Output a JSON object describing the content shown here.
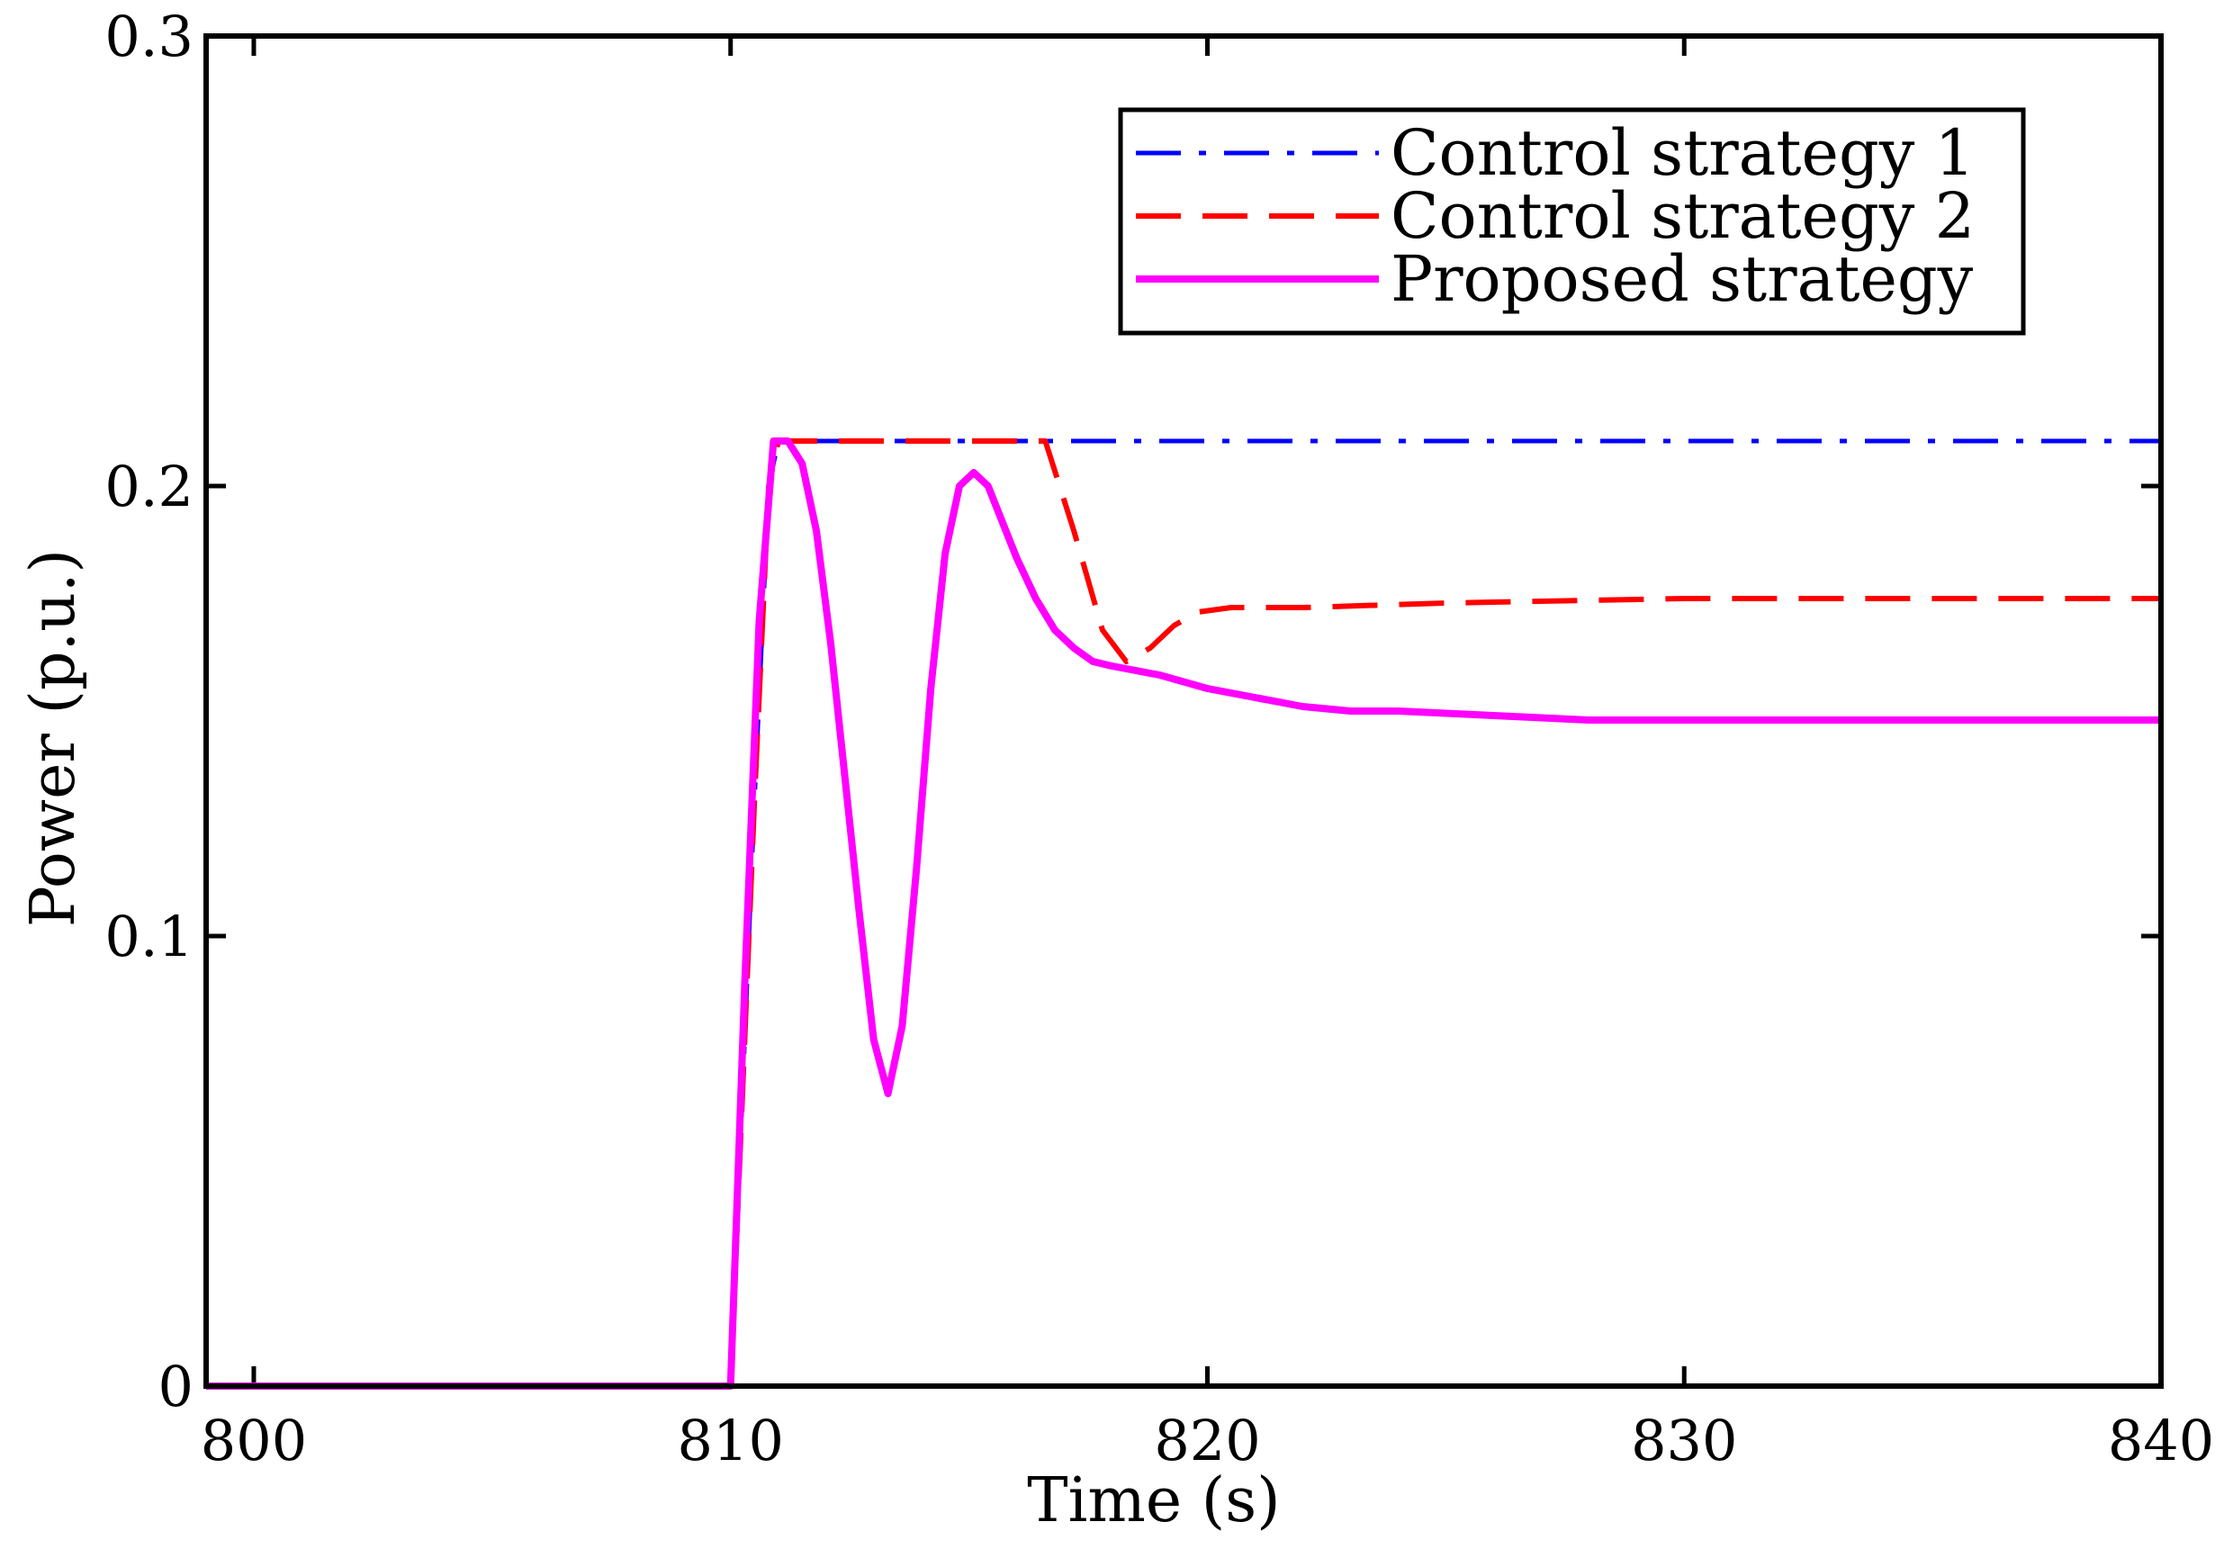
{
  "chart_data": {
    "type": "line",
    "title": "",
    "xlabel": "Time (s)",
    "ylabel": "Power (p.u.)",
    "xlim": [
      799,
      840
    ],
    "ylim": [
      0,
      0.3
    ],
    "xticks": [
      800,
      810,
      820,
      830,
      840
    ],
    "xtick_labels": [
      "800",
      "810",
      "820",
      "830",
      "840"
    ],
    "yticks": [
      0,
      0.1,
      0.2,
      0.3
    ],
    "ytick_labels": [
      "0",
      "0.1",
      "0.2",
      "0.3"
    ],
    "grid": false,
    "legend_position": "top-right",
    "series": [
      {
        "name": "Control strategy 1",
        "color": "#0000ff",
        "style": "dashdot",
        "x": [
          799,
          810,
          810.5,
          810.8,
          811,
          840
        ],
        "y": [
          0,
          0,
          0.13,
          0.2,
          0.21,
          0.21
        ]
      },
      {
        "name": "Control strategy 2",
        "color": "#ff0000",
        "style": "dashed",
        "x": [
          799,
          810,
          810.5,
          810.8,
          811,
          816.6,
          817.2,
          817.8,
          818.3,
          818.8,
          819.3,
          819.8,
          820.5,
          822,
          825,
          830,
          835,
          840
        ],
        "y": [
          0,
          0,
          0.13,
          0.2,
          0.21,
          0.21,
          0.19,
          0.168,
          0.161,
          0.164,
          0.169,
          0.172,
          0.173,
          0.173,
          0.174,
          0.175,
          0.175,
          0.175
        ]
      },
      {
        "name": "Proposed strategy",
        "color": "#ff00ff",
        "style": "solid",
        "x": [
          799,
          810,
          810.3,
          810.6,
          810.9,
          811.2,
          811.5,
          811.8,
          812.1,
          812.4,
          812.7,
          813.0,
          813.3,
          813.6,
          813.9,
          814.2,
          814.5,
          814.8,
          815.1,
          815.4,
          815.7,
          816.0,
          816.4,
          816.8,
          817.2,
          817.6,
          818.0,
          818.5,
          819.0,
          820.0,
          821.0,
          822.0,
          823.0,
          824.0,
          826.0,
          828.0,
          830.0,
          835.0,
          840.0
        ],
        "y": [
          0,
          0,
          0.09,
          0.17,
          0.21,
          0.21,
          0.205,
          0.19,
          0.165,
          0.135,
          0.105,
          0.077,
          0.065,
          0.08,
          0.115,
          0.155,
          0.185,
          0.2,
          0.203,
          0.2,
          0.192,
          0.184,
          0.175,
          0.168,
          0.164,
          0.161,
          0.16,
          0.159,
          0.158,
          0.155,
          0.153,
          0.151,
          0.15,
          0.15,
          0.149,
          0.148,
          0.148,
          0.148,
          0.148
        ]
      }
    ]
  }
}
